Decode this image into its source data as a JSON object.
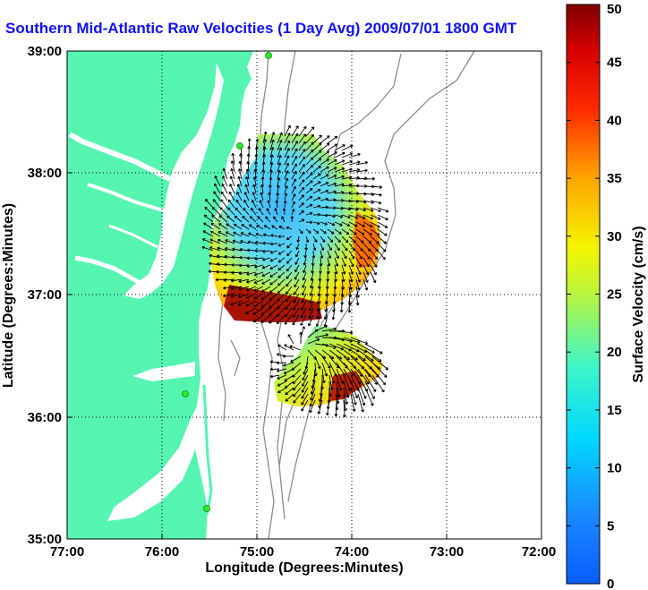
{
  "title": "Southern Mid-Atlantic Raw Velocities (1 Day Avg) 2009/07/01 1800 GMT",
  "map": {
    "xlabel": "Longitude (Degrees:Minutes)",
    "ylabel": "Latitude (Degrees:Minutes)",
    "x_ticks": [
      "77:00",
      "76:00",
      "75:00",
      "74:00",
      "73:00",
      "72:00"
    ],
    "y_ticks": [
      "39:00",
      "38:00",
      "37:00",
      "36:00",
      "35:00"
    ],
    "lon_range": [
      -77,
      -72
    ],
    "lat_range": [
      35,
      39
    ],
    "grid": "dotted",
    "land_color": "#55f5b0",
    "isobath_color": "#8c8c8c",
    "station_color": "#2ee82e"
  },
  "colorbar": {
    "label": "Surface Velocity (cm/s)",
    "ticks": [
      "0",
      "5",
      "10",
      "15",
      "20",
      "25",
      "30",
      "35",
      "40",
      "45",
      "50"
    ],
    "range": [
      0,
      50
    ],
    "colormap": "jet"
  }
}
